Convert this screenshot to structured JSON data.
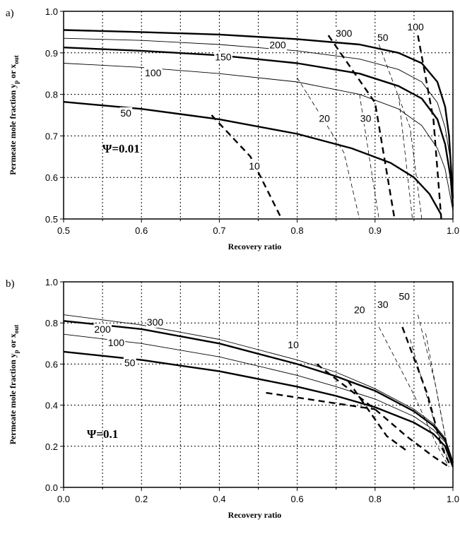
{
  "chart_data": [
    {
      "type": "line",
      "panel_label": "a)",
      "annotation": "Ψ=0.01",
      "xlabel": "Recovery ratio",
      "ylabel_main": "Permeate mole fraction y",
      "ylabel_sub1": "p",
      "ylabel_mid": " or x",
      "ylabel_sub2": "out",
      "xlim": [
        0.5,
        1.0
      ],
      "ylim": [
        0.5,
        1.0
      ],
      "xticks": [
        "0.5",
        "0.6",
        "0.7",
        "0.8",
        "0.9",
        "1.0"
      ],
      "yticks": [
        "0.5",
        "0.6",
        "0.7",
        "0.8",
        "0.9",
        "1.0"
      ],
      "grid": true,
      "series": [
        {
          "label": "300",
          "style": "thick-solid",
          "points": [
            [
              0.5,
              0.955
            ],
            [
              0.6,
              0.95
            ],
            [
              0.7,
              0.944
            ],
            [
              0.8,
              0.933
            ],
            [
              0.88,
              0.92
            ],
            [
              0.93,
              0.9
            ],
            [
              0.96,
              0.875
            ],
            [
              0.98,
              0.83
            ],
            [
              0.99,
              0.77
            ],
            [
              0.995,
              0.7
            ],
            [
              1.0,
              0.55
            ]
          ]
        },
        {
          "label": "200",
          "style": "thin-solid",
          "points": [
            [
              0.5,
              0.935
            ],
            [
              0.6,
              0.93
            ],
            [
              0.7,
              0.92
            ],
            [
              0.8,
              0.905
            ],
            [
              0.88,
              0.885
            ],
            [
              0.93,
              0.86
            ],
            [
              0.96,
              0.83
            ],
            [
              0.98,
              0.78
            ],
            [
              0.99,
              0.72
            ],
            [
              0.997,
              0.64
            ],
            [
              1.0,
              0.54
            ]
          ]
        },
        {
          "label": "150",
          "style": "thick-solid",
          "points": [
            [
              0.5,
              0.913
            ],
            [
              0.6,
              0.905
            ],
            [
              0.7,
              0.894
            ],
            [
              0.8,
              0.875
            ],
            [
              0.88,
              0.85
            ],
            [
              0.93,
              0.82
            ],
            [
              0.96,
              0.79
            ],
            [
              0.98,
              0.74
            ],
            [
              0.99,
              0.68
            ],
            [
              0.997,
              0.6
            ],
            [
              1.0,
              0.53
            ]
          ]
        },
        {
          "label": "100",
          "style": "thin-solid",
          "points": [
            [
              0.5,
              0.875
            ],
            [
              0.6,
              0.865
            ],
            [
              0.7,
              0.85
            ],
            [
              0.8,
              0.83
            ],
            [
              0.88,
              0.8
            ],
            [
              0.93,
              0.765
            ],
            [
              0.96,
              0.725
            ],
            [
              0.98,
              0.67
            ],
            [
              0.99,
              0.62
            ],
            [
              1.0,
              0.52
            ]
          ]
        },
        {
          "label": "50",
          "style": "thick-solid",
          "points": [
            [
              0.5,
              0.782
            ],
            [
              0.6,
              0.765
            ],
            [
              0.7,
              0.74
            ],
            [
              0.8,
              0.705
            ],
            [
              0.87,
              0.67
            ],
            [
              0.92,
              0.635
            ],
            [
              0.95,
              0.6
            ],
            [
              0.97,
              0.56
            ],
            [
              0.985,
              0.51
            ]
          ]
        }
      ],
      "isolines": [
        {
          "label": "10",
          "style": "thick-dash",
          "points": [
            [
              0.69,
              0.75
            ],
            [
              0.74,
              0.65
            ],
            [
              0.78,
              0.5
            ]
          ]
        },
        {
          "label": "20",
          "style": "thin-dash",
          "points": [
            [
              0.8,
              0.84
            ],
            [
              0.86,
              0.66
            ],
            [
              0.88,
              0.5
            ]
          ]
        },
        {
          "label": "30",
          "style": "thick-dash",
          "points": [
            [
              0.84,
              0.942
            ],
            [
              0.9,
              0.78
            ],
            [
              0.925,
              0.5
            ]
          ]
        },
        {
          "label": "50",
          "style": "thin-dash",
          "points": [
            [
              0.905,
              0.92
            ],
            [
              0.945,
              0.72
            ],
            [
              0.96,
              0.5
            ]
          ]
        },
        {
          "label": "100",
          "style": "thick-dash",
          "points": [
            [
              0.955,
              0.942
            ],
            [
              0.975,
              0.74
            ],
            [
              0.985,
              0.5
            ]
          ]
        },
        {
          "label": "",
          "style": "thin-dash",
          "points": [
            [
              0.88,
              0.8
            ],
            [
              0.905,
              0.5
            ]
          ]
        },
        {
          "label": "",
          "style": "thin-dash",
          "points": [
            [
              0.93,
              0.8
            ],
            [
              0.948,
              0.5
            ]
          ]
        }
      ],
      "series_labels": [
        {
          "text": "300",
          "x": 0.86,
          "y": 0.945
        },
        {
          "text": "200",
          "x": 0.775,
          "y": 0.917
        },
        {
          "text": "150",
          "x": 0.705,
          "y": 0.888
        },
        {
          "text": "100",
          "x": 0.615,
          "y": 0.85
        },
        {
          "text": "50",
          "x": 0.58,
          "y": 0.753
        }
      ],
      "isoline_labels": [
        {
          "text": "10",
          "x": 0.745,
          "y": 0.625
        },
        {
          "text": "20",
          "x": 0.835,
          "y": 0.74
        },
        {
          "text": "30",
          "x": 0.888,
          "y": 0.74
        },
        {
          "text": "50",
          "x": 0.91,
          "y": 0.935
        },
        {
          "text": "100",
          "x": 0.952,
          "y": 0.96
        }
      ]
    },
    {
      "type": "line",
      "panel_label": "b)",
      "annotation": "Ψ=0.1",
      "xlabel": "Recovery ratio",
      "ylabel_main": "Permeate mole fraction y",
      "ylabel_sub1": "p",
      "ylabel_mid": " or x",
      "ylabel_sub2": "out",
      "xlim": [
        0.0,
        1.0
      ],
      "ylim": [
        0.0,
        1.0
      ],
      "xticks": [
        "0.0",
        "0.2",
        "0.4",
        "0.6",
        "0.8",
        "1.0"
      ],
      "yticks": [
        "0.0",
        "0.2",
        "0.4",
        "0.6",
        "0.8",
        "1.0"
      ],
      "grid": true,
      "series": [
        {
          "label": "300",
          "style": "thin-solid",
          "points": [
            [
              0.0,
              0.84
            ],
            [
              0.2,
              0.79
            ],
            [
              0.4,
              0.72
            ],
            [
              0.6,
              0.62
            ],
            [
              0.7,
              0.56
            ],
            [
              0.8,
              0.48
            ],
            [
              0.9,
              0.38
            ],
            [
              0.95,
              0.31
            ],
            [
              0.98,
              0.24
            ],
            [
              1.0,
              0.12
            ]
          ]
        },
        {
          "label": "200",
          "style": "thick-solid",
          "points": [
            [
              0.0,
              0.81
            ],
            [
              0.2,
              0.77
            ],
            [
              0.4,
              0.7
            ],
            [
              0.6,
              0.6
            ],
            [
              0.7,
              0.54
            ],
            [
              0.8,
              0.47
            ],
            [
              0.9,
              0.37
            ],
            [
              0.95,
              0.3
            ],
            [
              0.98,
              0.23
            ],
            [
              1.0,
              0.12
            ]
          ]
        },
        {
          "label": "100",
          "style": "thin-solid",
          "points": [
            [
              0.0,
              0.745
            ],
            [
              0.2,
              0.7
            ],
            [
              0.4,
              0.635
            ],
            [
              0.6,
              0.545
            ],
            [
              0.7,
              0.49
            ],
            [
              0.8,
              0.43
            ],
            [
              0.9,
              0.345
            ],
            [
              0.95,
              0.28
            ],
            [
              0.98,
              0.22
            ],
            [
              1.0,
              0.11
            ]
          ]
        },
        {
          "label": "50",
          "style": "thick-solid",
          "points": [
            [
              0.0,
              0.66
            ],
            [
              0.2,
              0.62
            ],
            [
              0.4,
              0.565
            ],
            [
              0.6,
              0.49
            ],
            [
              0.7,
              0.445
            ],
            [
              0.8,
              0.39
            ],
            [
              0.9,
              0.315
            ],
            [
              0.95,
              0.26
            ],
            [
              0.98,
              0.2
            ],
            [
              1.0,
              0.1
            ]
          ]
        }
      ],
      "isolines": [
        {
          "label": "10",
          "style": "thick-dash",
          "points": [
            [
              0.65,
              0.6
            ],
            [
              0.8,
              0.38
            ],
            [
              0.88,
              0.25
            ],
            [
              0.95,
              0.15
            ],
            [
              0.99,
              0.1
            ]
          ]
        },
        {
          "label": "20",
          "style": "thin-dash",
          "points": [
            [
              0.81,
              0.78
            ],
            [
              0.9,
              0.45
            ],
            [
              0.96,
              0.2
            ],
            [
              0.99,
              0.1
            ]
          ]
        },
        {
          "label": "30",
          "style": "thick-dash",
          "points": [
            [
              0.87,
              0.78
            ],
            [
              0.935,
              0.45
            ],
            [
              0.97,
              0.2
            ],
            [
              0.995,
              0.1
            ]
          ]
        },
        {
          "label": "50",
          "style": "thin-dash",
          "points": [
            [
              0.91,
              0.84
            ],
            [
              0.955,
              0.5
            ],
            [
              0.985,
              0.2
            ],
            [
              1.0,
              0.1
            ]
          ]
        },
        {
          "label": "",
          "style": "thick-dash",
          "points": [
            [
              0.52,
              0.46
            ],
            [
              0.8,
              0.38
            ]
          ]
        },
        {
          "label": "",
          "style": "thick-dash",
          "points": [
            [
              0.73,
              0.52
            ],
            [
              0.83,
              0.25
            ],
            [
              0.88,
              0.18
            ]
          ]
        },
        {
          "label": "",
          "style": "thin-dash",
          "points": [
            [
              0.89,
              0.72
            ],
            [
              0.955,
              0.3
            ],
            [
              0.99,
              0.12
            ]
          ]
        },
        {
          "label": "",
          "style": "thin-dash",
          "points": [
            [
              0.93,
              0.75
            ],
            [
              0.975,
              0.3
            ],
            [
              0.995,
              0.12
            ]
          ]
        }
      ],
      "series_labels": [
        {
          "text": "300",
          "x": 0.235,
          "y": 0.8
        },
        {
          "text": "200",
          "x": 0.1,
          "y": 0.765
        },
        {
          "text": "100",
          "x": 0.135,
          "y": 0.7
        },
        {
          "text": "50",
          "x": 0.17,
          "y": 0.602
        }
      ],
      "isoline_labels": [
        {
          "text": "10",
          "x": 0.59,
          "y": 0.69
        },
        {
          "text": "20",
          "x": 0.76,
          "y": 0.86
        },
        {
          "text": "30",
          "x": 0.82,
          "y": 0.885
        },
        {
          "text": "50",
          "x": 0.875,
          "y": 0.925
        }
      ]
    }
  ]
}
